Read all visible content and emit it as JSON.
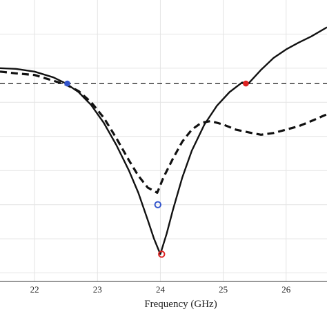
{
  "chart_data": {
    "type": "line",
    "title": "",
    "xlabel": "Frequency (GHz)",
    "ylabel": "",
    "xlim": [
      21.45,
      26.65
    ],
    "ylim": [
      -0.25,
      7.25
    ],
    "x_ticks": [
      22,
      23,
      24,
      25,
      26
    ],
    "y_gridlines": [
      0,
      1,
      2,
      3,
      4,
      5,
      6,
      7
    ],
    "grid": true,
    "legend": "none",
    "series": [
      {
        "style": "solid",
        "color": "#111111",
        "x": [
          21.45,
          21.7,
          22.0,
          22.3,
          22.5,
          22.7,
          22.9,
          23.1,
          23.3,
          23.5,
          23.65,
          23.8,
          23.9,
          24.0,
          24.1,
          24.2,
          24.35,
          24.5,
          24.7,
          24.9,
          25.1,
          25.3,
          25.4,
          25.6,
          25.8,
          26.0,
          26.2,
          26.4,
          26.65
        ],
        "y": [
          6.0,
          5.98,
          5.9,
          5.73,
          5.55,
          5.3,
          4.92,
          4.4,
          3.75,
          3.0,
          2.35,
          1.55,
          1.0,
          0.55,
          1.15,
          1.85,
          2.8,
          3.58,
          4.35,
          4.9,
          5.3,
          5.58,
          5.55,
          5.95,
          6.3,
          6.55,
          6.75,
          6.93,
          7.2
        ]
      },
      {
        "style": "dashed",
        "color": "#111111",
        "x": [
          21.45,
          21.7,
          22.0,
          22.3,
          22.5,
          22.7,
          22.9,
          23.1,
          23.3,
          23.5,
          23.65,
          23.8,
          23.9,
          23.95,
          24.05,
          24.2,
          24.35,
          24.5,
          24.65,
          24.8,
          25.0,
          25.2,
          25.4,
          25.6,
          25.8,
          26.0,
          26.2,
          26.4,
          26.65
        ],
        "y": [
          5.9,
          5.85,
          5.8,
          5.63,
          5.52,
          5.33,
          5.0,
          4.55,
          3.95,
          3.3,
          2.85,
          2.5,
          2.4,
          2.35,
          2.8,
          3.35,
          3.85,
          4.2,
          4.4,
          4.45,
          4.35,
          4.2,
          4.12,
          4.05,
          4.1,
          4.2,
          4.3,
          4.45,
          4.65
        ]
      },
      {
        "style": "reference-dashed",
        "color": "#111111",
        "x": [
          21.45,
          26.65
        ],
        "y": [
          5.55,
          5.55
        ]
      }
    ],
    "markers": [
      {
        "shape": "dot",
        "color": "#3355cc",
        "x": 22.52,
        "y": 5.55
      },
      {
        "shape": "ring",
        "color": "#3355cc",
        "x": 23.96,
        "y": 2.0
      },
      {
        "shape": "ring",
        "color": "#dd2222",
        "x": 24.02,
        "y": 0.55
      },
      {
        "shape": "dot",
        "color": "#dd2222",
        "x": 25.36,
        "y": 5.55
      }
    ]
  }
}
